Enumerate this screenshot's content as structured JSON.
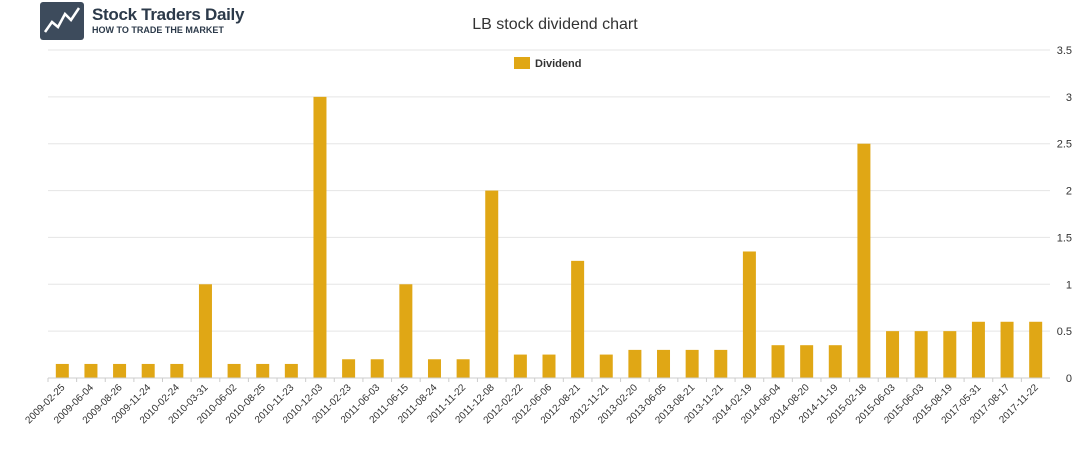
{
  "logo": {
    "title": "Stock Traders Daily",
    "tagline": "HOW TO TRADE THE MARKET"
  },
  "chart_data": {
    "type": "bar",
    "title": "LB stock dividend chart",
    "xlabel": "",
    "ylabel": "",
    "ylim": [
      0,
      3.5
    ],
    "yticks": [
      "0",
      "0.5",
      "1",
      "1.5",
      "2",
      "2.5",
      "3",
      "3.5"
    ],
    "grid": true,
    "legend": "top-center",
    "color": "#e0a715",
    "categories": [
      "2009-02-25",
      "2009-06-04",
      "2009-08-26",
      "2009-11-24",
      "2010-02-24",
      "2010-03-31",
      "2010-06-02",
      "2010-08-25",
      "2010-11-23",
      "2010-12-03",
      "2011-02-23",
      "2011-06-03",
      "2011-06-15",
      "2011-08-24",
      "2011-11-22",
      "2011-12-08",
      "2012-02-22",
      "2012-06-06",
      "2012-08-21",
      "2012-11-21",
      "2013-02-20",
      "2013-06-05",
      "2013-08-21",
      "2013-11-21",
      "2014-02-19",
      "2014-06-04",
      "2014-08-20",
      "2014-11-19",
      "2015-02-18",
      "2015-06-03",
      "2015-06-03",
      "2015-08-19",
      "2017-05-31",
      "2017-08-17",
      "2017-11-22"
    ],
    "series": [
      {
        "name": "Dividend",
        "values": [
          0.15,
          0.15,
          0.15,
          0.15,
          0.15,
          1,
          0.15,
          0.15,
          0.15,
          3,
          0.2,
          0.2,
          1,
          0.2,
          0.2,
          2,
          0.25,
          0.25,
          1.25,
          0.25,
          0.3,
          0.3,
          0.3,
          0.3,
          1.35,
          0.35,
          0.35,
          0.35,
          2.5,
          0.5,
          0.5,
          0.5,
          0.6,
          0.6,
          0.6
        ]
      }
    ]
  }
}
